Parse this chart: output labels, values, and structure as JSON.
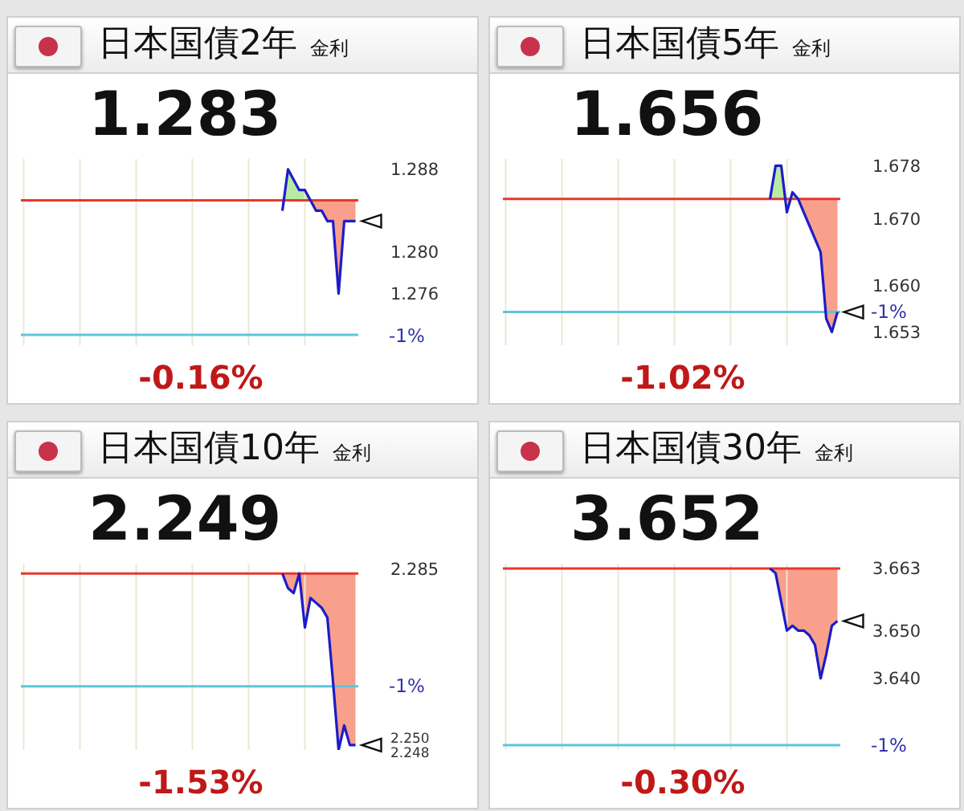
{
  "chart_data": [
    {
      "type": "line",
      "title": "日本国債2年",
      "subtitle": "金利",
      "annotations": [
        "1.283",
        "-0.16%",
        "-1%"
      ],
      "tick_labels": "y",
      "grid": "x",
      "categories": [
        null,
        null,
        null,
        null,
        null,
        null,
        null,
        null,
        null,
        null,
        null,
        null,
        null,
        null,
        null,
        null,
        null,
        null,
        null,
        null,
        null,
        null,
        null,
        null,
        null,
        null,
        null,
        null,
        null,
        null,
        null,
        null,
        null,
        null,
        null,
        null,
        null,
        null,
        null,
        null,
        null,
        null,
        null,
        null,
        null,
        null,
        null,
        null,
        null,
        null,
        null,
        null,
        null,
        null,
        null,
        null,
        null,
        null,
        null,
        null
      ],
      "series": [
        {
          "color": "#1c1cc8",
          "values": [
            null,
            null,
            null,
            null,
            null,
            null,
            null,
            null,
            null,
            null,
            null,
            null,
            null,
            null,
            null,
            null,
            null,
            null,
            null,
            null,
            null,
            null,
            null,
            null,
            null,
            null,
            null,
            null,
            null,
            null,
            null,
            null,
            null,
            null,
            null,
            null,
            null,
            null,
            null,
            null,
            null,
            null,
            null,
            null,
            null,
            null,
            1.284,
            1.288,
            1.287,
            1.286,
            1.286,
            1.285,
            1.284,
            1.284,
            1.283,
            1.283,
            1.276,
            1.283,
            1.283,
            1.283
          ]
        }
      ],
      "ylim": [
        1.271,
        1.289
      ],
      "yticks": [
        1.276,
        {
          "value": 1.28,
          "label": "1.280"
        },
        1.288
      ],
      "ref_lines": [
        {
          "axis": "y",
          "value": 1.285,
          "color": "#e8372c"
        },
        {
          "axis": "y",
          "value": 1.272,
          "color": "#5cc6dc"
        }
      ]
    },
    {
      "type": "line",
      "title": "日本国債5年",
      "subtitle": "金利",
      "annotations": [
        "1.656",
        "-1.02%",
        "-1%"
      ],
      "tick_labels": "y",
      "grid": "x",
      "categories": [
        null,
        null,
        null,
        null,
        null,
        null,
        null,
        null,
        null,
        null,
        null,
        null,
        null,
        null,
        null,
        null,
        null,
        null,
        null,
        null,
        null,
        null,
        null,
        null,
        null,
        null,
        null,
        null,
        null,
        null,
        null,
        null,
        null,
        null,
        null,
        null,
        null,
        null,
        null,
        null,
        null,
        null,
        null,
        null,
        null,
        null,
        null,
        null,
        null,
        null,
        null,
        null,
        null,
        null,
        null,
        null,
        null,
        null,
        null,
        null
      ],
      "series": [
        {
          "color": "#1c1cc8",
          "values": [
            null,
            null,
            null,
            null,
            null,
            null,
            null,
            null,
            null,
            null,
            null,
            null,
            null,
            null,
            null,
            null,
            null,
            null,
            null,
            null,
            null,
            null,
            null,
            null,
            null,
            null,
            null,
            null,
            null,
            null,
            null,
            null,
            null,
            null,
            null,
            null,
            null,
            null,
            null,
            null,
            null,
            null,
            null,
            null,
            null,
            null,
            null,
            1.673,
            1.678,
            1.678,
            1.671,
            1.674,
            1.673,
            1.671,
            1.669,
            1.667,
            1.665,
            1.655,
            1.653,
            1.656
          ]
        }
      ],
      "ylim": [
        1.651,
        1.679
      ],
      "yticks": [
        1.653,
        {
          "value": 1.66,
          "label": "1.660"
        },
        {
          "value": 1.67,
          "label": "1.670"
        },
        1.678
      ],
      "ref_lines": [
        {
          "axis": "y",
          "value": 1.673,
          "color": "#e8372c"
        },
        {
          "axis": "y",
          "value": 1.656,
          "color": "#5cc6dc"
        }
      ]
    },
    {
      "type": "line",
      "title": "日本国債10年",
      "subtitle": "金利",
      "annotations": [
        "2.249",
        "-1.53%",
        "-1%"
      ],
      "tick_labels": "y",
      "grid": "x",
      "categories": [
        null,
        null,
        null,
        null,
        null,
        null,
        null,
        null,
        null,
        null,
        null,
        null,
        null,
        null,
        null,
        null,
        null,
        null,
        null,
        null,
        null,
        null,
        null,
        null,
        null,
        null,
        null,
        null,
        null,
        null,
        null,
        null,
        null,
        null,
        null,
        null,
        null,
        null,
        null,
        null,
        null,
        null,
        null,
        null,
        null,
        null,
        null,
        null,
        null,
        null,
        null,
        null,
        null,
        null,
        null,
        null,
        null,
        null,
        null,
        null
      ],
      "series": [
        {
          "color": "#1c1cc8",
          "values": [
            null,
            null,
            null,
            null,
            null,
            null,
            null,
            null,
            null,
            null,
            null,
            null,
            null,
            null,
            null,
            null,
            null,
            null,
            null,
            null,
            null,
            null,
            null,
            null,
            null,
            null,
            null,
            null,
            null,
            null,
            null,
            null,
            null,
            null,
            null,
            null,
            null,
            null,
            null,
            null,
            null,
            null,
            null,
            null,
            null,
            null,
            2.284,
            2.281,
            2.28,
            2.284,
            2.273,
            2.279,
            2.278,
            2.277,
            2.275,
            2.262,
            2.248,
            2.253,
            2.249,
            2.249
          ]
        }
      ],
      "ylim": [
        2.248,
        2.286
      ],
      "yticks": [
        2.248,
        {
          "value": 2.25,
          "label": "2.250"
        },
        2.285
      ],
      "ref_lines": [
        {
          "axis": "y",
          "value": 2.284,
          "color": "#e8372c"
        },
        {
          "axis": "y",
          "value": 2.261,
          "color": "#5cc6dc"
        }
      ]
    },
    {
      "type": "line",
      "title": "日本国債30年",
      "subtitle": "金利",
      "annotations": [
        "3.652",
        "-0.30%",
        "-1%"
      ],
      "tick_labels": "y",
      "grid": "x",
      "categories": [
        null,
        null,
        null,
        null,
        null,
        null,
        null,
        null,
        null,
        null,
        null,
        null,
        null,
        null,
        null,
        null,
        null,
        null,
        null,
        null,
        null,
        null,
        null,
        null,
        null,
        null,
        null,
        null,
        null,
        null,
        null,
        null,
        null,
        null,
        null,
        null,
        null,
        null,
        null,
        null,
        null,
        null,
        null,
        null,
        null,
        null,
        null,
        null,
        null,
        null,
        null,
        null,
        null,
        null,
        null,
        null,
        null,
        null,
        null,
        null
      ],
      "series": [
        {
          "color": "#1c1cc8",
          "values": [
            null,
            null,
            null,
            null,
            null,
            null,
            null,
            null,
            null,
            null,
            null,
            null,
            null,
            null,
            null,
            null,
            null,
            null,
            null,
            null,
            null,
            null,
            null,
            null,
            null,
            null,
            null,
            null,
            null,
            null,
            null,
            null,
            null,
            null,
            null,
            null,
            null,
            null,
            null,
            null,
            null,
            null,
            null,
            null,
            null,
            null,
            null,
            3.663,
            3.662,
            3.656,
            3.65,
            3.651,
            3.65,
            3.65,
            3.649,
            3.647,
            3.64,
            3.645,
            3.651,
            3.652
          ]
        }
      ],
      "ylim": [
        3.625,
        3.664
      ],
      "yticks": [
        {
          "value": 3.64,
          "label": "3.640"
        },
        {
          "value": 3.65,
          "label": "3.650"
        },
        3.663
      ],
      "ref_lines": [
        {
          "axis": "y",
          "value": 3.663,
          "color": "#e8372c"
        },
        {
          "axis": "y",
          "value": 3.626,
          "color": "#5cc6dc"
        }
      ]
    }
  ]
}
